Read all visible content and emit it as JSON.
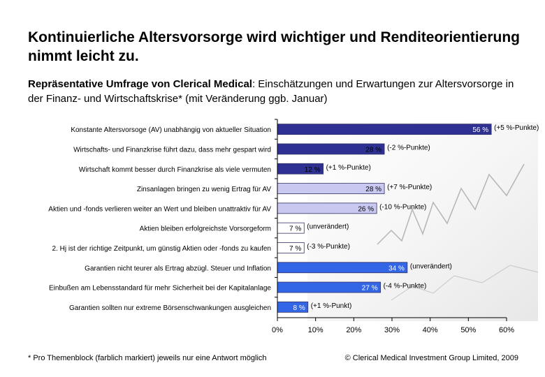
{
  "header": {
    "title": "Kontinuierliche Altersvorsorge wird wichtiger und Renditeorientierung nimmt leicht zu.",
    "subtitle_bold": "Repräsentative Umfrage von Clerical Medical",
    "subtitle_rest": ": Einschätzungen und Erwartungen zur Altersvorsorge in der Finanz- und Wirtschaftskrise* (mit Veränderung ggb. Januar)"
  },
  "chart_data": {
    "type": "bar",
    "orientation": "horizontal",
    "categories": [
      "Konstante Altersvorsoge (AV) unabhängig von aktueller Situation",
      "Wirtschafts- und Finanzkrise führt dazu, dass mehr gespart wird",
      "Wirtschaft kommt besser durch Finanzkrise als viele vermuten",
      "Zinsanlagen bringen zu wenig Ertrag für AV",
      "Aktien und -fonds verlieren weiter an Wert und bleiben unattraktiv für AV",
      "Aktien bleiben erfolgreichste Vorsorgeform",
      "2. Hj ist der richtige Zeitpunkt, um günstig Aktien oder -fonds zu kaufen",
      "Garantien nicht teurer als Ertrag abzügl. Steuer und Inflation",
      "Einbußen am Lebensstandard für mehr Sicherheit bei der Kapitalanlage",
      "Garantien sollten nur extreme Börsenschwankungen ausgleichen"
    ],
    "values": [
      56,
      28,
      12,
      28,
      26,
      7,
      7,
      34,
      27,
      8
    ],
    "value_labels": [
      "56 %",
      "28 %",
      "12 %",
      "28 %",
      "26 %",
      "7 %",
      "7 %",
      "34 %",
      "27 %",
      "8 %"
    ],
    "change_labels": [
      "(+5 %-Punkte)",
      "(-2 %-Punkte)",
      "(+1 %-Punkte)",
      "(+7 %-Punkte)",
      "(-10 %-Punkte)",
      "(unverändert)",
      "(-3 %-Punkte)",
      "(unverändert)",
      "(-4 %-Punkte)",
      "(+1 %-Punkt)"
    ],
    "bar_colors": [
      "#2e3192",
      "#2e3192",
      "#2e3192",
      "#c8c8f0",
      "#c8c8f0",
      "#ffffff",
      "#ffffff",
      "#3366e6",
      "#3366e6",
      "#3366e6"
    ],
    "value_label_colors": [
      "#ffffff",
      "#000000",
      "#000000",
      "#000000",
      "#000000",
      "#000000",
      "#000000",
      "#ffffff",
      "#ffffff",
      "#ffffff"
    ],
    "xlim": [
      0,
      60
    ],
    "x_ticks": [
      0,
      10,
      20,
      30,
      40,
      50,
      60
    ],
    "x_tick_labels": [
      "0%",
      "10%",
      "20%",
      "30%",
      "40%",
      "50%",
      "60%"
    ],
    "grid": false,
    "legend": "none"
  },
  "footer": {
    "footnote": "* Pro Themenblock (farblich markiert) jeweils nur eine Antwort möglich",
    "copyright": "© Clerical Medical Investment Group Limited, 2009"
  }
}
